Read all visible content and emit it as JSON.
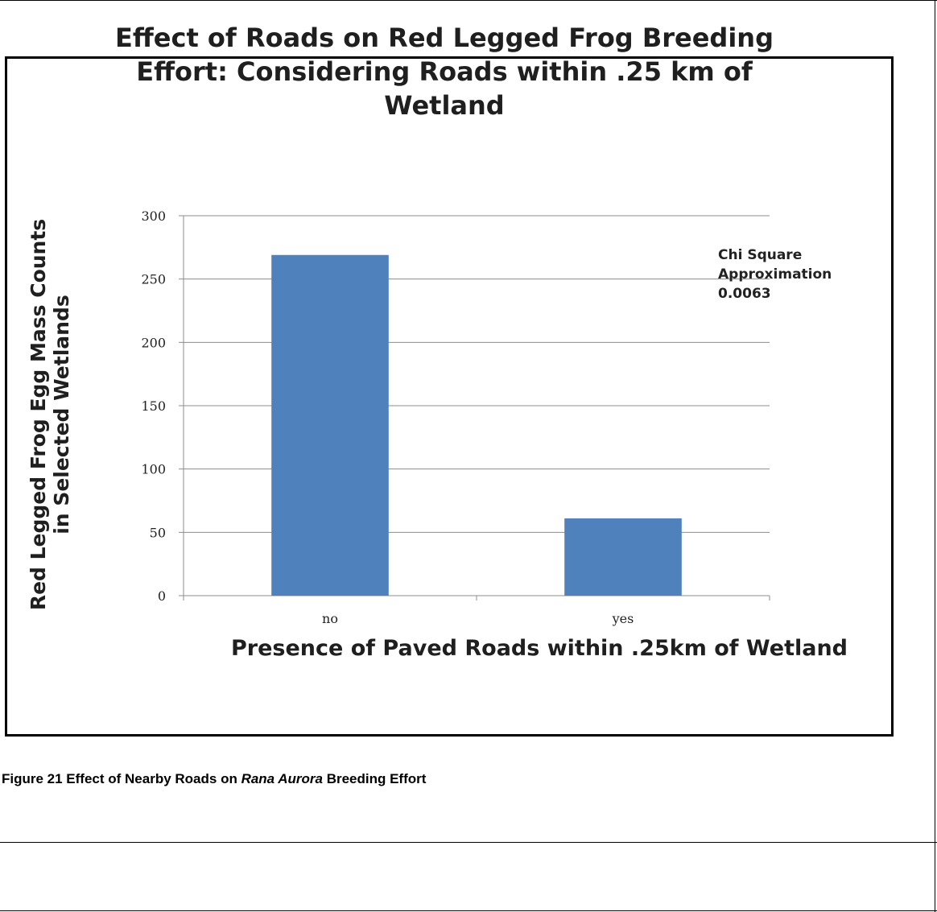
{
  "chart_data": {
    "type": "bar",
    "title_lines": [
      "Effect of Roads on Red Legged Frog Breeding",
      "Effort: Considering Roads within .25 km of",
      "Wetland"
    ],
    "ylabel_lines": [
      "Red Legged Frog Egg Mass Counts",
      "in Selected Wetlands"
    ],
    "xlabel": "Presence of Paved Roads within .25km of Wetland",
    "categories": [
      "no",
      "yes"
    ],
    "values": [
      269,
      61
    ],
    "ylim": [
      0,
      300
    ],
    "yticks": [
      0,
      50,
      100,
      150,
      200,
      250,
      300
    ],
    "bar_color": "#4f81bd",
    "grid": true,
    "annotation_lines": [
      "Chi Square",
      "Approximation",
      "0.0063"
    ]
  },
  "caption": {
    "prefix": "Figure 21 Effect of Nearby Roads on ",
    "species": "Rana Aurora",
    "suffix": " Breeding Effort"
  }
}
